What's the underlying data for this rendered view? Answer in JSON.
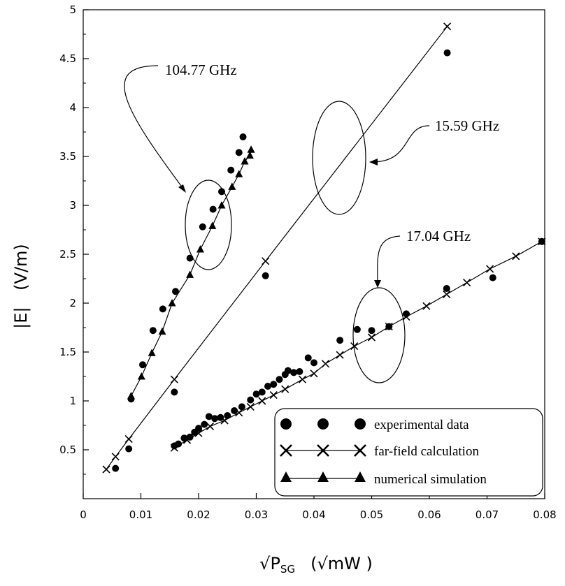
{
  "chart_data": {
    "type": "scatter",
    "title": "",
    "xlabel_root": "√",
    "xlabel_var": "P",
    "xlabel_sub": "SG",
    "xlabel_unit": "(√mW )",
    "ylabel_mag": "|E|",
    "ylabel_unit": "(V/m)",
    "xlim": [
      0,
      0.08
    ],
    "ylim": [
      0,
      5
    ],
    "xticks": [
      "0",
      "0.01",
      "0.02",
      "0.03",
      "0.04",
      "0.05",
      "0.06",
      "0.07",
      "0.08"
    ],
    "yticks": [
      "0.5",
      "1",
      "1.5",
      "2",
      "2.5",
      "3",
      "3.5",
      "4",
      "4.5",
      "5"
    ],
    "annotations": {
      "f1": "104.77 GHz",
      "f2": "15.59 GHz",
      "f3": "17.04 GHz"
    },
    "legend": {
      "position": "lower-right",
      "entries": [
        "experimental data",
        "far-field calculation",
        "numerical simulation"
      ]
    },
    "series": [
      {
        "name": "experimental data - 104.77 GHz",
        "marker": "circle",
        "points": [
          [
            0.0083,
            1.02
          ],
          [
            0.0103,
            1.37
          ],
          [
            0.0121,
            1.72
          ],
          [
            0.0138,
            1.94
          ],
          [
            0.016,
            2.12
          ],
          [
            0.0185,
            2.46
          ],
          [
            0.0207,
            2.78
          ],
          [
            0.0225,
            2.96
          ],
          [
            0.024,
            3.14
          ],
          [
            0.0256,
            3.36
          ],
          [
            0.027,
            3.54
          ],
          [
            0.0277,
            3.7
          ]
        ]
      },
      {
        "name": "numerical simulation - 104.77 GHz",
        "marker": "triangle",
        "line": true,
        "points": [
          [
            0.0083,
            1.05
          ],
          [
            0.0101,
            1.25
          ],
          [
            0.0119,
            1.49
          ],
          [
            0.0137,
            1.71
          ],
          [
            0.0154,
            2.0
          ],
          [
            0.0185,
            2.29
          ],
          [
            0.0203,
            2.55
          ],
          [
            0.0224,
            2.79
          ],
          [
            0.024,
            3.0
          ],
          [
            0.0258,
            3.19
          ],
          [
            0.027,
            3.32
          ],
          [
            0.028,
            3.45
          ],
          [
            0.0289,
            3.51
          ],
          [
            0.0291,
            3.57
          ]
        ]
      },
      {
        "name": "experimental data - 15.59 GHz",
        "marker": "circle",
        "points": [
          [
            0.0056,
            0.31
          ],
          [
            0.0079,
            0.51
          ],
          [
            0.0158,
            1.09
          ],
          [
            0.0316,
            2.28
          ],
          [
            0.0631,
            4.56
          ]
        ]
      },
      {
        "name": "far-field calculation - 15.59 GHz",
        "marker": "cross",
        "line": true,
        "points": [
          [
            0.004,
            0.3
          ],
          [
            0.0056,
            0.43
          ],
          [
            0.0079,
            0.61
          ],
          [
            0.0158,
            1.22
          ],
          [
            0.0316,
            2.43
          ],
          [
            0.0631,
            4.83
          ]
        ]
      },
      {
        "name": "experimental data - 17.04 GHz",
        "marker": "circle",
        "points": [
          [
            0.0158,
            0.54
          ],
          [
            0.0165,
            0.56
          ],
          [
            0.0175,
            0.62
          ],
          [
            0.0185,
            0.63
          ],
          [
            0.0193,
            0.68
          ],
          [
            0.02,
            0.72
          ],
          [
            0.021,
            0.76
          ],
          [
            0.0218,
            0.84
          ],
          [
            0.0228,
            0.82
          ],
          [
            0.0238,
            0.83
          ],
          [
            0.025,
            0.85
          ],
          [
            0.0262,
            0.9
          ],
          [
            0.0275,
            0.94
          ],
          [
            0.029,
            1.01
          ],
          [
            0.03,
            1.07
          ],
          [
            0.031,
            1.09
          ],
          [
            0.032,
            1.15
          ],
          [
            0.033,
            1.17
          ],
          [
            0.034,
            1.22
          ],
          [
            0.035,
            1.27
          ],
          [
            0.0355,
            1.31
          ],
          [
            0.0365,
            1.29
          ],
          [
            0.0375,
            1.3
          ],
          [
            0.039,
            1.44
          ],
          [
            0.04,
            1.39
          ],
          [
            0.0445,
            1.62
          ],
          [
            0.0475,
            1.73
          ],
          [
            0.05,
            1.72
          ],
          [
            0.053,
            1.76
          ],
          [
            0.056,
            1.89
          ],
          [
            0.063,
            2.15
          ],
          [
            0.071,
            2.26
          ],
          [
            0.0795,
            2.63
          ]
        ]
      },
      {
        "name": "far-field calculation - 17.04 GHz",
        "marker": "cross",
        "line": true,
        "points": [
          [
            0.0158,
            0.52
          ],
          [
            0.018,
            0.6
          ],
          [
            0.02,
            0.67
          ],
          [
            0.022,
            0.74
          ],
          [
            0.0245,
            0.8
          ],
          [
            0.027,
            0.88
          ],
          [
            0.029,
            0.94
          ],
          [
            0.031,
            1.0
          ],
          [
            0.033,
            1.06
          ],
          [
            0.035,
            1.12
          ],
          [
            0.038,
            1.22
          ],
          [
            0.04,
            1.28
          ],
          [
            0.042,
            1.38
          ],
          [
            0.0445,
            1.47
          ],
          [
            0.047,
            1.56
          ],
          [
            0.05,
            1.65
          ],
          [
            0.053,
            1.76
          ],
          [
            0.056,
            1.86
          ],
          [
            0.0595,
            1.97
          ],
          [
            0.063,
            2.09
          ],
          [
            0.0665,
            2.21
          ],
          [
            0.0705,
            2.35
          ],
          [
            0.075,
            2.48
          ],
          [
            0.0795,
            2.63
          ]
        ]
      }
    ]
  }
}
